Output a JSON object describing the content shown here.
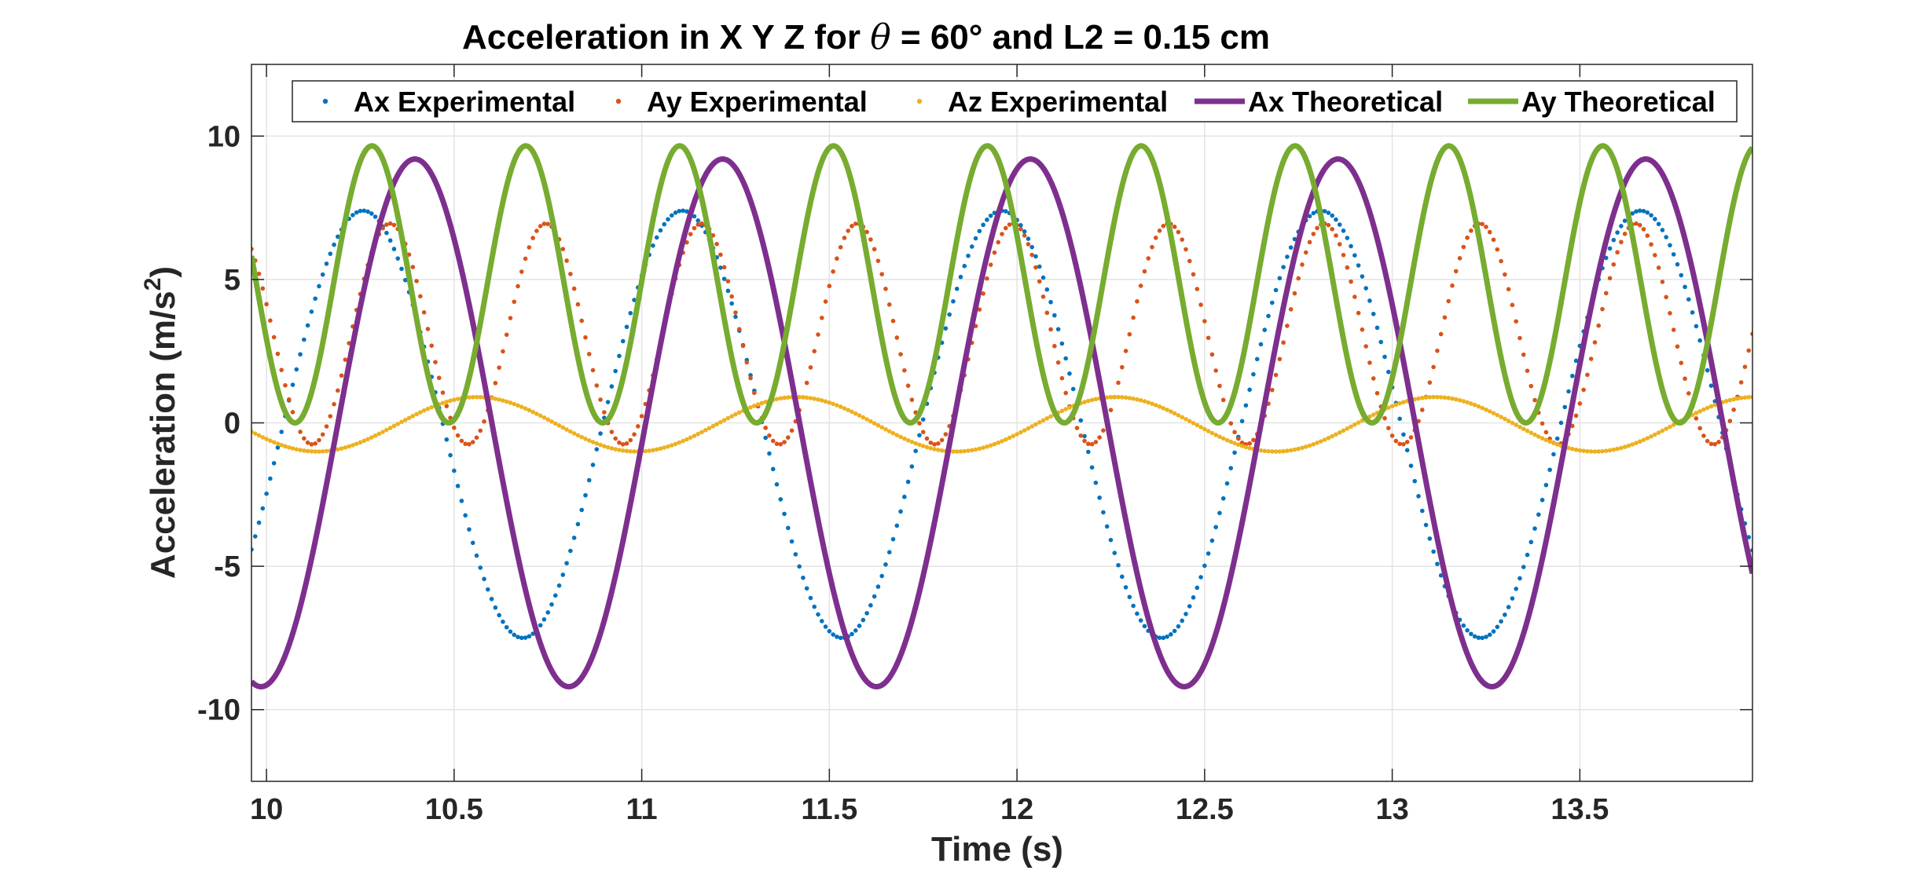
{
  "chart_data": {
    "type": "line",
    "title_parts": {
      "before": "Acceleration in X Y Z for ",
      "symbol": "θ",
      "after": " = 60° and L2 = 0.15 cm"
    },
    "xlabel": "Time (s)",
    "ylabel_parts": {
      "base": "Acceleration (m/s",
      "sup": "2",
      "close": ")"
    },
    "xlim": [
      9.96,
      13.96
    ],
    "ylim": [
      -12.5,
      12.5
    ],
    "xticks": [
      10,
      10.5,
      11,
      11.5,
      12,
      12.5,
      13,
      13.5
    ],
    "xtick_labels": [
      "10",
      "10.5",
      "11",
      "11.5",
      "12",
      "12.5",
      "13",
      "13.5"
    ],
    "yticks": [
      -10,
      -5,
      0,
      5,
      10
    ],
    "ytick_labels": [
      "-10",
      "-5",
      "0",
      "5",
      "10"
    ],
    "grid": true,
    "legend_position": "top, horizontal",
    "series": [
      {
        "name": "Ax Experimental",
        "style": "dots",
        "color": "#0072BD",
        "sample_step": 0.01,
        "model": {
          "offset": -0.05,
          "amplitude": 7.45,
          "frequency_hz": 1.175,
          "phase_rad": 1.24
        }
      },
      {
        "name": "Ay Experimental",
        "style": "dots",
        "color": "#D95319",
        "sample_step": 0.01,
        "model": {
          "offset": 3.1,
          "amplitude": 3.85,
          "frequency_hz": 2.41,
          "phase_rad": 2.24
        }
      },
      {
        "name": "Az Experimental",
        "style": "dots",
        "color": "#EDB120",
        "sample_step": 0.01,
        "model": {
          "offset": -0.05,
          "amplitude": 0.95,
          "frequency_hz": 1.175,
          "phase_rad": -1.0
        }
      },
      {
        "name": "Ax Theoretical",
        "style": "line",
        "color": "#7E2F8E",
        "sample_step": 0.004,
        "model": {
          "offset": 0.0,
          "amplitude": 9.2,
          "frequency_hz": 1.2195,
          "phase_rad": 3.597
        }
      },
      {
        "name": "Ay Theoretical",
        "style": "line",
        "color": "#77AC30",
        "sample_step": 0.004,
        "model": {
          "offset": 4.83,
          "amplitude": 4.83,
          "frequency_hz": 2.439,
          "phase_rad": 1.097
        }
      }
    ]
  }
}
